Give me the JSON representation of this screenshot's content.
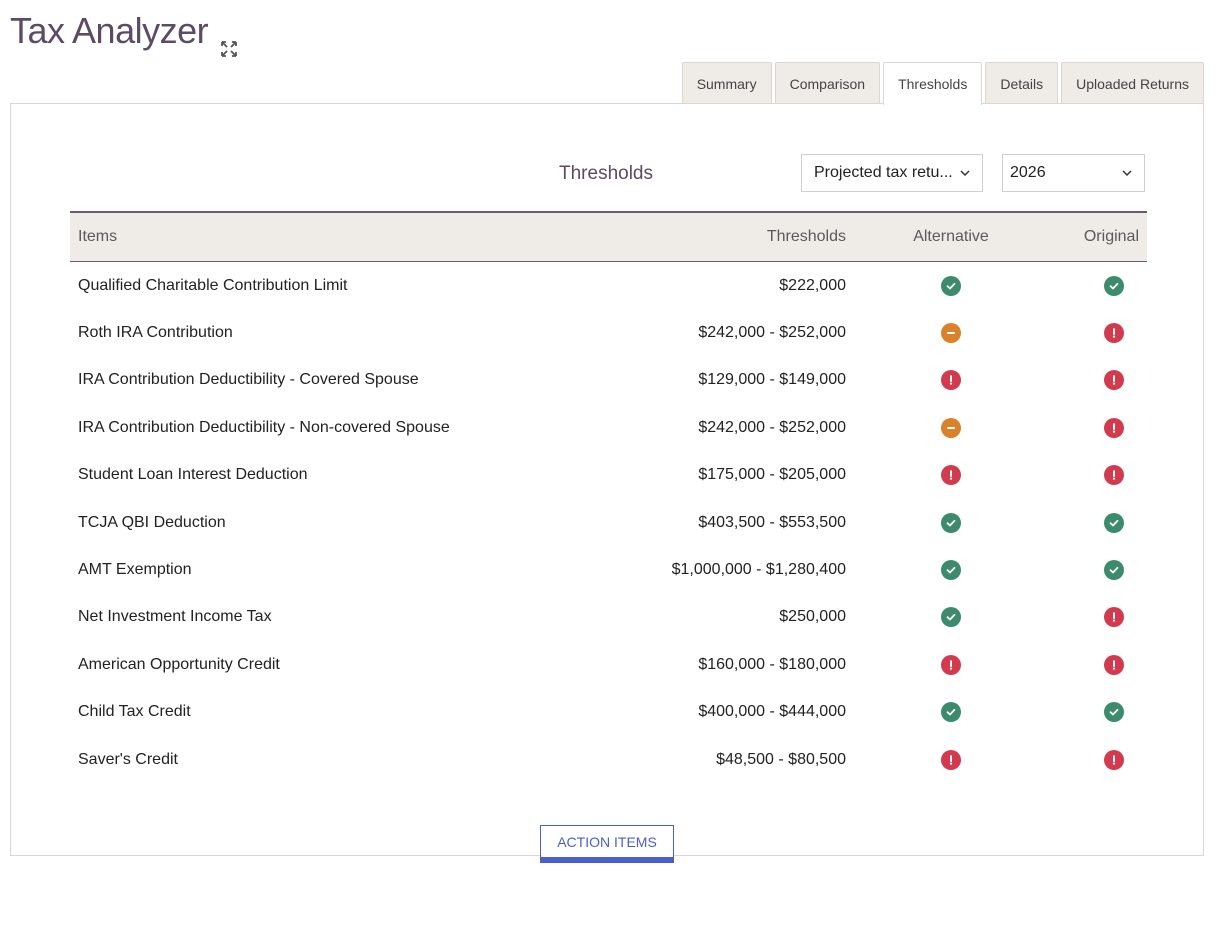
{
  "app": {
    "title": "Tax Analyzer"
  },
  "tabs": [
    {
      "label": "Summary"
    },
    {
      "label": "Comparison"
    },
    {
      "label": "Thresholds"
    },
    {
      "label": "Details"
    },
    {
      "label": "Uploaded Returns"
    }
  ],
  "active_tab": "Thresholds",
  "section": {
    "title": "Thresholds"
  },
  "filters": {
    "return_select": "Projected tax retu...",
    "year_select": "2026"
  },
  "table": {
    "headers": {
      "item": "Items",
      "thresholds": "Thresholds",
      "alternative": "Alternative",
      "original": "Original"
    },
    "rows": [
      {
        "item": "Qualified Charitable Contribution Limit",
        "threshold": "$222,000",
        "alternative": "check",
        "original": "check"
      },
      {
        "item": "Roth IRA Contribution",
        "threshold": "$242,000 - $252,000",
        "alternative": "partial",
        "original": "alert"
      },
      {
        "item": "IRA Contribution Deductibility - Covered Spouse",
        "threshold": "$129,000 - $149,000",
        "alternative": "alert",
        "original": "alert"
      },
      {
        "item": "IRA Contribution Deductibility - Non-covered Spouse",
        "threshold": "$242,000 - $252,000",
        "alternative": "partial",
        "original": "alert"
      },
      {
        "item": "Student Loan Interest Deduction",
        "threshold": "$175,000 - $205,000",
        "alternative": "alert",
        "original": "alert"
      },
      {
        "item": "TCJA QBI Deduction",
        "threshold": "$403,500 - $553,500",
        "alternative": "check",
        "original": "check"
      },
      {
        "item": "AMT Exemption",
        "threshold": "$1,000,000 - $1,280,400",
        "alternative": "check",
        "original": "check"
      },
      {
        "item": "Net Investment Income Tax",
        "threshold": "$250,000",
        "alternative": "check",
        "original": "alert"
      },
      {
        "item": "American Opportunity Credit",
        "threshold": "$160,000 - $180,000",
        "alternative": "alert",
        "original": "alert"
      },
      {
        "item": "Child Tax Credit",
        "threshold": "$400,000 - $444,000",
        "alternative": "check",
        "original": "check"
      },
      {
        "item": "Saver's Credit",
        "threshold": "$48,500 - $80,500",
        "alternative": "alert",
        "original": "alert"
      }
    ]
  },
  "status_colors": {
    "check": "#3d8b6f",
    "partial": "#d9822b",
    "alert": "#d23b4e"
  },
  "status_icons": {
    "check": "check-circle-icon",
    "partial": "minus-circle-icon",
    "alert": "alert-circle-icon"
  },
  "action_button": {
    "label": "ACTION ITEMS"
  }
}
